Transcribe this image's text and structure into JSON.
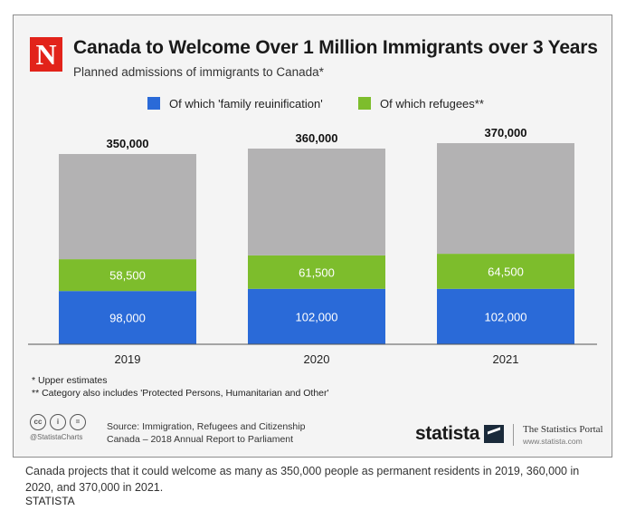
{
  "logo_letter": "N",
  "caption": "Canada projects that it could welcome as many as 350,000 people as permanent residents in 2019, 360,000 in 2020, and 370,000 in 2021.",
  "caption_source": "STATISTA",
  "footnotes": [
    "*  Upper estimates",
    "** Category also includes 'Protected Persons, Humanitarian and Other'"
  ],
  "source_lines": [
    "Source: Immigration, Refugees and Citizenship",
    "Canada – 2018 Annual Report to Parliament"
  ],
  "cc_handle": "@StatistaCharts",
  "cc_icons": [
    "cc",
    "i",
    "="
  ],
  "statista_word": "statista",
  "portal_title": "The Statistics Portal",
  "portal_url": "www.statista.com",
  "chart_data": {
    "type": "bar",
    "stacked": true,
    "title": "Canada to Welcome Over 1 Million Immigrants over 3 Years",
    "subtitle": "Planned admissions of immigrants to Canada*",
    "categories": [
      "2019",
      "2020",
      "2021"
    ],
    "totals": [
      350000,
      360000,
      370000
    ],
    "total_labels": [
      "350,000",
      "360,000",
      "370,000"
    ],
    "series": [
      {
        "name": "Of which 'family reuinification'",
        "color": "#2a6ad8",
        "values": [
          98000,
          102000,
          102000
        ],
        "labels": [
          "98,000",
          "102,000",
          "102,000"
        ]
      },
      {
        "name": "Of which refugees**",
        "color": "#7dbd2c",
        "values": [
          58500,
          61500,
          64500
        ],
        "labels": [
          "58,500",
          "61,500",
          "64,500"
        ]
      },
      {
        "color": "#b3b2b3",
        "values": [
          193500,
          196500,
          203500
        ]
      }
    ],
    "legend_position": "top",
    "grid": false,
    "ylim": [
      0,
      370000
    ]
  }
}
